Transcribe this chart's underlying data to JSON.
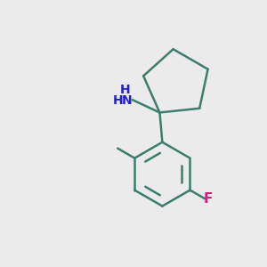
{
  "background_color": "#ebebeb",
  "bond_color": "#3d7d6e",
  "nh2_color": "#2222cc",
  "f_color": "#cc2277",
  "line_width": 1.8,
  "figsize": [
    3.0,
    3.0
  ],
  "dpi": 100,
  "xlim": [
    0,
    10
  ],
  "ylim": [
    0,
    10
  ]
}
